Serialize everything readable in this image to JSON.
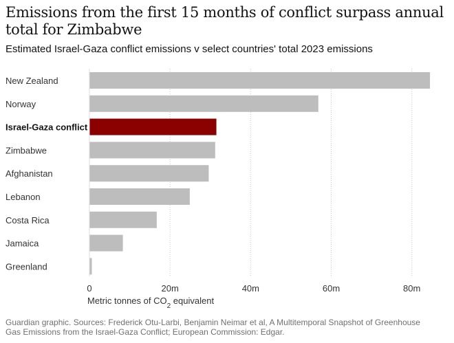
{
  "header": {
    "title": "Emissions from the first 15 months of conflict surpass annual total for Zimbabwe",
    "subtitle": "Estimated Israel-Gaza conflict emissions v select countries' total 2023 emissions"
  },
  "chart_data": {
    "type": "bar",
    "orientation": "horizontal",
    "categories": [
      "New Zealand",
      "Norway",
      "Israel-Gaza conflict",
      "Zimbabwe",
      "Afghanistan",
      "Lebanon",
      "Costa Rica",
      "Jamaica",
      "Greenland"
    ],
    "values": [
      84.5,
      56.8,
      31.5,
      31.2,
      29.6,
      24.9,
      16.7,
      8.3,
      0.6
    ],
    "highlight": "Israel-Gaza conflict",
    "xlim": [
      0,
      85
    ],
    "xticks": [
      0,
      20,
      40,
      60,
      80
    ],
    "xtick_labels": [
      "0",
      "20m",
      "40m",
      "60m",
      "80m"
    ],
    "xlabel_prefix": "Metric tonnes of CO",
    "xlabel_sub": "2",
    "xlabel_suffix": " equivalent",
    "grid": "vertical dotted",
    "colors": {
      "bar": "#bdbdbd",
      "highlight": "#8b0000",
      "grid": "#c8c8c8",
      "text": "#333333"
    }
  },
  "footer": {
    "line1": "Guardian graphic. Sources: Frederick Otu-Larbi, Benjamin Neimar et al, A Multitemporal Snapshot of Greenhouse",
    "line2": "Gas Emissions from the Israel-Gaza Conflict; European Commission: Edgar."
  }
}
